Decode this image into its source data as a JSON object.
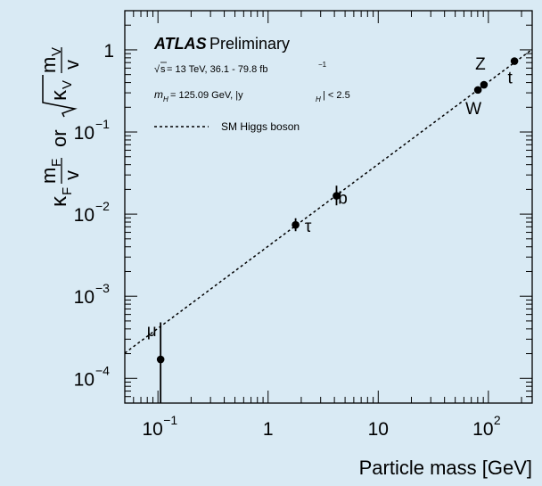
{
  "chart_data": {
    "type": "scatter",
    "xlabel": "Particle mass [GeV]",
    "ylabel_parts": {
      "kappa_f": "κ",
      "f_sub": "F",
      "m_f": "m",
      "f_sub2": "F",
      "v_den": "v",
      "or": "or",
      "kappa_v": "κ",
      "v_sub": "V",
      "m_v": "m",
      "v_sub2": "V",
      "v_den2": "v"
    },
    "x_scale": "log",
    "y_scale": "log",
    "xlim": [
      0.05,
      250
    ],
    "ylim": [
      5e-05,
      3
    ],
    "x_ticks": [
      {
        "value": 0.1,
        "base": "10",
        "exp": "−1"
      },
      {
        "value": 1,
        "base": "1",
        "exp": ""
      },
      {
        "value": 10,
        "base": "10",
        "exp": ""
      },
      {
        "value": 100,
        "base": "10",
        "exp": "2"
      }
    ],
    "y_ticks": [
      {
        "value": 0.0001,
        "base": "10",
        "exp": "−4"
      },
      {
        "value": 0.001,
        "base": "10",
        "exp": "−3"
      },
      {
        "value": 0.01,
        "base": "10",
        "exp": "−2"
      },
      {
        "value": 0.1,
        "base": "10",
        "exp": "−1"
      },
      {
        "value": 1,
        "base": "1",
        "exp": ""
      }
    ],
    "legend": {
      "experiment": "ATLAS",
      "status": "Preliminary",
      "energy_prefix": "s",
      "energy_text": " = 13 TeV, 36.1 - 79.8 fb",
      "energy_exp": "−1",
      "mass_m": "m",
      "mass_sub": "H",
      "mass_text": " = 125.09 GeV, |y",
      "mass_text_sub": "H",
      "mass_text_end": "| < 2.5",
      "line_label": "SM Higgs boson"
    },
    "sm_line": {
      "x": [
        0.05,
        250
      ],
      "y": [
        0.000203,
        1.016
      ]
    },
    "points": [
      {
        "name": "μ",
        "x": 0.1057,
        "y": 0.00017,
        "err_low": 1e-05,
        "err_high": 0.00048
      },
      {
        "name": "τ",
        "x": 1.777,
        "y": 0.0074,
        "err_low": 0.0062,
        "err_high": 0.0089
      },
      {
        "name": "b",
        "x": 4.18,
        "y": 0.0167,
        "err_low": 0.0128,
        "err_high": 0.0222
      },
      {
        "name": "W",
        "x": 80.4,
        "y": 0.325,
        "err_low": 0.3,
        "err_high": 0.35
      },
      {
        "name": "Z",
        "x": 91.19,
        "y": 0.376,
        "err_low": 0.35,
        "err_high": 0.4
      },
      {
        "name": "t",
        "x": 172.5,
        "y": 0.73,
        "err_low": 0.69,
        "err_high": 0.77
      }
    ]
  },
  "colors": {
    "background": "#d9eaf4",
    "axes_border": "#000000",
    "marker": "#000000"
  }
}
